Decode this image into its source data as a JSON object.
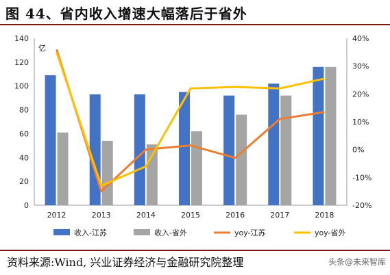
{
  "figure": {
    "title": "图 44、省内收入增速大幅落后于省外",
    "source": "资料来源:Wind, 兴业证券经济与金融研究院整理",
    "watermark": "头条@未来智库"
  },
  "chart_data": {
    "type": "bar",
    "categories": [
      "2012",
      "2013",
      "2014",
      "2015",
      "2016",
      "2017",
      "2018"
    ],
    "series": [
      {
        "name": "收入-江苏",
        "type": "bar",
        "axis": "left",
        "color": "#4472c4",
        "values": [
          109,
          93,
          93,
          95,
          92,
          102,
          116
        ]
      },
      {
        "name": "收入-省外",
        "type": "bar",
        "axis": "left",
        "color": "#a5a5a5",
        "values": [
          61,
          54,
          51,
          62,
          76,
          92,
          116
        ]
      },
      {
        "name": "yoy-江苏",
        "type": "line",
        "axis": "right",
        "color": "#ed7d31",
        "values": [
          36,
          -15,
          0,
          1.5,
          -3,
          11,
          13.5
        ]
      },
      {
        "name": "yoy-省外",
        "type": "line",
        "axis": "right",
        "color": "#ffc000",
        "values": [
          35,
          -13,
          -6,
          22,
          22.5,
          22,
          25.5
        ]
      }
    ],
    "y_left": {
      "unit_label": "亿",
      "range": [
        0,
        140
      ],
      "ticks": [
        "0",
        "20",
        "40",
        "60",
        "80",
        "100",
        "120",
        "140"
      ]
    },
    "y_right": {
      "range": [
        -20,
        40
      ],
      "ticks": [
        "-20%",
        "-10%",
        "0%",
        "10%",
        "20%",
        "30%",
        "40%"
      ]
    },
    "grid": false,
    "legend_position": "bottom"
  }
}
